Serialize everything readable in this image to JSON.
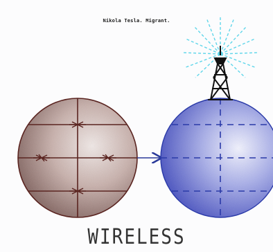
{
  "caption": "Nikola Tesla. Migrant.",
  "title": "WIRELESS",
  "colors": {
    "globe_left": "#8a6a66",
    "globe_right": "#4a52c8",
    "wire": "#5a2420",
    "arrow": "#2a3a9a",
    "rays": "#5fd6ea",
    "tower": "#111111"
  },
  "icons": {
    "left": "barbed-wire-globe-icon",
    "right": "radio-tower-globe-icon"
  }
}
